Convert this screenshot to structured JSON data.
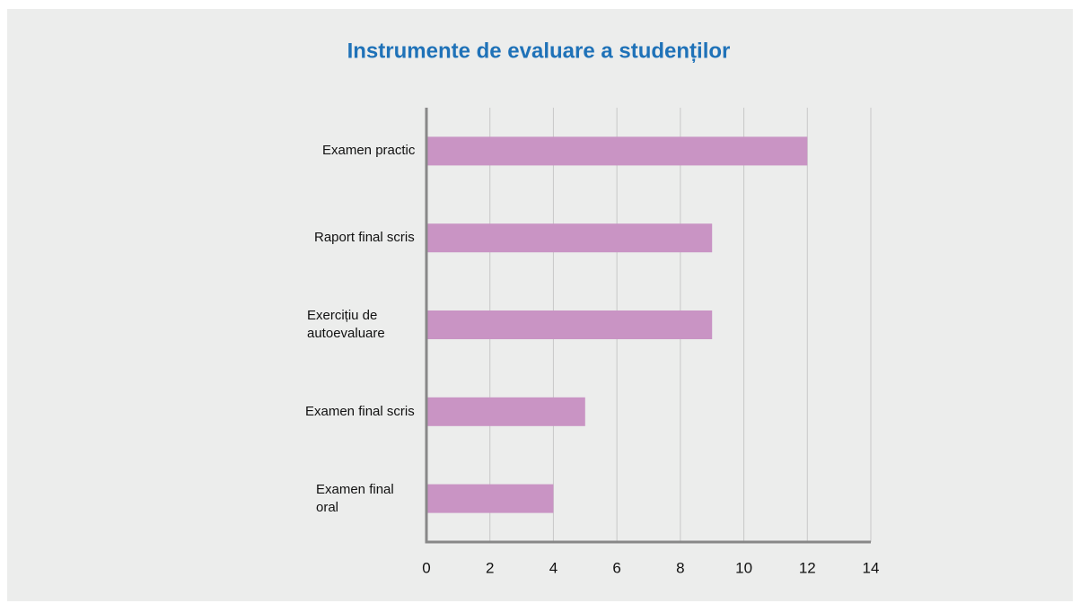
{
  "chart_data": {
    "type": "barh",
    "title": "Instrumente de evaluare a studenților",
    "categories": [
      "Examen practic",
      "Raport final scris",
      "Exercițiu de autoevaluare",
      "Examen final scris",
      "Examen final oral"
    ],
    "values": [
      12,
      9,
      9,
      5,
      4
    ],
    "color": "#c994c4",
    "xlim": [
      0,
      14
    ],
    "xticks": [
      0,
      2,
      4,
      6,
      8,
      10,
      12,
      14
    ],
    "grid": true
  }
}
